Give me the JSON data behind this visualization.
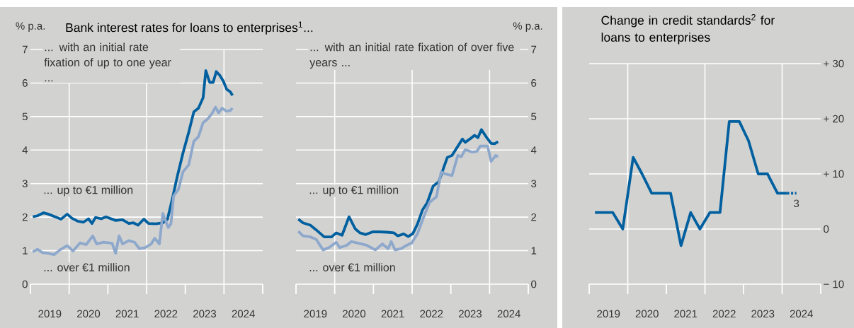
{
  "chart_data": [
    {
      "type": "line",
      "title": "Bank interest rates for loans to enterprises$^{1}$...",
      "subtitle": "... with an initial rate fixation of up to one year ...",
      "ylabel": "% p.a.",
      "xlim": [
        2019,
        2025
      ],
      "ylim": [
        0,
        7
      ],
      "yticks": [
        0,
        1,
        2,
        3,
        4,
        5,
        6,
        7
      ],
      "xticks": [
        {
          "value": 2019,
          "label": null
        },
        {
          "value": 2020,
          "label": null
        },
        {
          "value": 2021,
          "label": null
        },
        {
          "value": 2022,
          "label": null
        },
        {
          "value": 2023,
          "label": null
        },
        {
          "value": 2024,
          "label": null
        },
        {
          "value": 2025,
          "label": null
        },
        {
          "value": 2019.5,
          "label": "2019"
        },
        {
          "value": 2020.5,
          "label": "2020"
        },
        {
          "value": 2021.5,
          "label": "2021"
        },
        {
          "value": 2022.5,
          "label": "2022"
        },
        {
          "value": 2023.5,
          "label": "2023"
        },
        {
          "value": 2024.5,
          "label": "2024"
        }
      ],
      "grid": "y",
      "ref_lines": [
        {
          "axis": "x",
          "value": 2020,
          "color": "#ffffff"
        },
        {
          "axis": "x",
          "value": 2022,
          "color": "#ffffff"
        },
        {
          "axis": "x",
          "value": 2024,
          "color": "#ffffff"
        }
      ],
      "series": [
        {
          "name": "... up to €1 million",
          "color": "#00609f",
          "x": [
            2019.06,
            2019.18,
            2019.34,
            2019.46,
            2019.64,
            2019.79,
            2019.95,
            2020.07,
            2020.22,
            2020.37,
            2020.5,
            2020.59,
            2020.68,
            2020.83,
            2020.95,
            2021.2,
            2021.38,
            2021.54,
            2021.66,
            2021.78,
            2021.93,
            2022.05,
            2022.24,
            2022.42,
            2022.54,
            2022.67,
            2022.79,
            2022.94,
            2023.09,
            2023.22,
            2023.34,
            2023.46,
            2023.53,
            2023.63,
            2023.72,
            2023.8,
            2023.89,
            2023.98,
            2024.07,
            2024.16,
            2024.22
          ],
          "values": [
            2.01,
            2.04,
            2.13,
            2.09,
            2.01,
            1.94,
            2.09,
            1.97,
            1.88,
            1.85,
            1.95,
            1.81,
            1.99,
            1.95,
            2.01,
            1.9,
            1.92,
            1.81,
            1.83,
            1.76,
            1.94,
            1.81,
            1.8,
            1.83,
            1.94,
            2.57,
            3.2,
            3.91,
            4.54,
            5.14,
            5.25,
            5.56,
            6.37,
            6.02,
            6.02,
            6.34,
            6.23,
            6.06,
            5.81,
            5.74,
            5.63
          ]
        },
        {
          "name": "... over €1 million",
          "color": "#8ea8cc",
          "x": [
            2019.06,
            2019.18,
            2019.31,
            2019.46,
            2019.61,
            2019.76,
            2019.95,
            2020.1,
            2020.28,
            2020.44,
            2020.61,
            2020.71,
            2020.89,
            2021.11,
            2021.2,
            2021.29,
            2021.38,
            2021.54,
            2021.69,
            2021.81,
            2021.96,
            2022.12,
            2022.21,
            2022.33,
            2022.42,
            2022.56,
            2022.63,
            2022.7,
            2022.82,
            2022.94,
            2023.09,
            2023.22,
            2023.34,
            2023.46,
            2023.58,
            2023.7,
            2023.78,
            2023.86,
            2023.95,
            2024.06,
            2024.16,
            2024.22
          ],
          "values": [
            0.96,
            1.04,
            0.94,
            0.92,
            0.88,
            1.02,
            1.15,
            0.99,
            1.23,
            1.18,
            1.44,
            1.2,
            1.25,
            1.22,
            0.92,
            1.44,
            1.2,
            1.3,
            1.25,
            1.06,
            1.09,
            1.2,
            1.37,
            1.2,
            2.11,
            1.69,
            1.8,
            2.64,
            2.82,
            3.35,
            3.56,
            4.26,
            4.4,
            4.82,
            4.93,
            5.11,
            5.28,
            5.11,
            5.25,
            5.16,
            5.18,
            5.25
          ]
        }
      ]
    },
    {
      "type": "line",
      "subtitle": "... with an initial rate fixation of over five years ...",
      "ylabel": "% p.a.",
      "xlim": [
        2019,
        2025
      ],
      "ylim": [
        0,
        7
      ],
      "yticks": [
        0,
        1,
        2,
        3,
        4,
        5,
        6,
        7
      ],
      "xticks": [
        {
          "value": 2019,
          "label": null
        },
        {
          "value": 2020,
          "label": null
        },
        {
          "value": 2021,
          "label": null
        },
        {
          "value": 2022,
          "label": null
        },
        {
          "value": 2023,
          "label": null
        },
        {
          "value": 2024,
          "label": null
        },
        {
          "value": 2025,
          "label": null
        },
        {
          "value": 2019.5,
          "label": "2019"
        },
        {
          "value": 2020.5,
          "label": "2020"
        },
        {
          "value": 2021.5,
          "label": "2021"
        },
        {
          "value": 2022.5,
          "label": "2022"
        },
        {
          "value": 2023.5,
          "label": "2023"
        },
        {
          "value": 2024.5,
          "label": "2024"
        }
      ],
      "grid": "y",
      "ref_lines": [
        {
          "axis": "x",
          "value": 2020,
          "color": "#ffffff"
        },
        {
          "axis": "x",
          "value": 2022,
          "color": "#ffffff"
        },
        {
          "axis": "x",
          "value": 2024,
          "color": "#ffffff"
        }
      ],
      "series": [
        {
          "name": "... up to €1 million",
          "color": "#00609f",
          "x": [
            2019.06,
            2019.18,
            2019.37,
            2019.52,
            2019.73,
            2019.92,
            2020.04,
            2020.19,
            2020.37,
            2020.53,
            2020.65,
            2020.8,
            2020.98,
            2021.17,
            2021.35,
            2021.53,
            2021.63,
            2021.78,
            2021.9,
            2022.02,
            2022.14,
            2022.27,
            2022.39,
            2022.54,
            2022.69,
            2022.82,
            2022.91,
            2023.03,
            2023.15,
            2023.3,
            2023.37,
            2023.49,
            2023.61,
            2023.7,
            2023.79,
            2023.91,
            2024.04,
            2024.13,
            2024.22
          ],
          "values": [
            1.94,
            1.83,
            1.76,
            1.62,
            1.41,
            1.41,
            1.53,
            1.46,
            2.01,
            1.65,
            1.53,
            1.48,
            1.56,
            1.56,
            1.55,
            1.53,
            1.44,
            1.5,
            1.42,
            1.51,
            1.8,
            2.22,
            2.43,
            2.92,
            3.06,
            3.49,
            3.78,
            3.84,
            4.06,
            4.33,
            4.23,
            4.33,
            4.44,
            4.37,
            4.61,
            4.4,
            4.2,
            4.19,
            4.25
          ]
        },
        {
          "name": "... over €1 million",
          "color": "#8ea8cc",
          "x": [
            2019.06,
            2019.18,
            2019.37,
            2019.52,
            2019.7,
            2019.85,
            2020.04,
            2020.13,
            2020.31,
            2020.43,
            2020.62,
            2020.83,
            2021.05,
            2021.23,
            2021.38,
            2021.46,
            2021.56,
            2021.72,
            2021.84,
            2021.99,
            2022.14,
            2022.3,
            2022.45,
            2022.63,
            2022.75,
            2022.85,
            2023.03,
            2023.18,
            2023.27,
            2023.37,
            2023.55,
            2023.67,
            2023.76,
            2023.95,
            2024.04,
            2024.16,
            2024.22
          ],
          "values": [
            1.58,
            1.44,
            1.41,
            1.34,
            1.02,
            1.09,
            1.25,
            1.09,
            1.16,
            1.27,
            1.22,
            1.16,
            1.02,
            1.2,
            1.06,
            1.27,
            1.02,
            1.06,
            1.15,
            1.23,
            1.51,
            2.01,
            2.44,
            2.61,
            3.35,
            3.29,
            3.24,
            3.84,
            3.8,
            4.01,
            3.94,
            3.96,
            4.12,
            4.12,
            3.66,
            3.84,
            3.8
          ]
        }
      ]
    },
    {
      "type": "line",
      "title": "Change in credit standards$^{2}$ for loans to enterprises",
      "xlim": [
        2019,
        2025
      ],
      "ylim": [
        -10,
        30
      ],
      "yticks": [
        {
          "value": -10,
          "label": "− 10"
        },
        0,
        {
          "value": 10,
          "label": "+ 10"
        },
        {
          "value": 20,
          "label": "+ 20"
        },
        {
          "value": 30,
          "label": "+ 30"
        }
      ],
      "xticks": [
        {
          "value": 2019,
          "label": null
        },
        {
          "value": 2020,
          "label": null
        },
        {
          "value": 2021,
          "label": null
        },
        {
          "value": 2022,
          "label": null
        },
        {
          "value": 2023,
          "label": null
        },
        {
          "value": 2024,
          "label": null
        },
        {
          "value": 2025,
          "label": null
        },
        {
          "value": 2019.5,
          "label": "2019"
        },
        {
          "value": 2020.5,
          "label": "2020"
        },
        {
          "value": 2021.5,
          "label": "2021"
        },
        {
          "value": 2022.5,
          "label": "2022"
        },
        {
          "value": 2023.5,
          "label": "2023"
        },
        {
          "value": 2024.5,
          "label": "2024"
        }
      ],
      "grid": "y",
      "ref_lines": [
        {
          "axis": "x",
          "value": 2020,
          "color": "#ffffff"
        },
        {
          "axis": "x",
          "value": 2022,
          "color": "#ffffff"
        },
        {
          "axis": "x",
          "value": 2024,
          "color": "#ffffff"
        }
      ],
      "annotations": [
        {
          "text": "3",
          "x": 2024.37,
          "y": 6.5
        }
      ],
      "series": [
        {
          "color": "#00609f",
          "x": [
            2019.15,
            2019.61,
            2019.87,
            2020.14,
            2020.37,
            2020.62,
            2020.86,
            2021.11,
            2021.38,
            2021.63,
            2021.87,
            2022.13,
            2022.39,
            2022.63,
            2022.89,
            2023.13,
            2023.38,
            2023.62,
            2023.88,
            2024.13
          ],
          "values": [
            3,
            3,
            0,
            13,
            10,
            6.5,
            6.5,
            6.5,
            -3,
            3,
            0,
            3,
            3,
            19.5,
            19.5,
            16,
            10,
            10,
            6.5,
            6.5
          ]
        },
        {
          "color": "#00609f",
          "line_style": "dotted",
          "x": [
            2024.13,
            2024.37
          ],
          "values": [
            6.5,
            6.5
          ]
        }
      ]
    }
  ]
}
